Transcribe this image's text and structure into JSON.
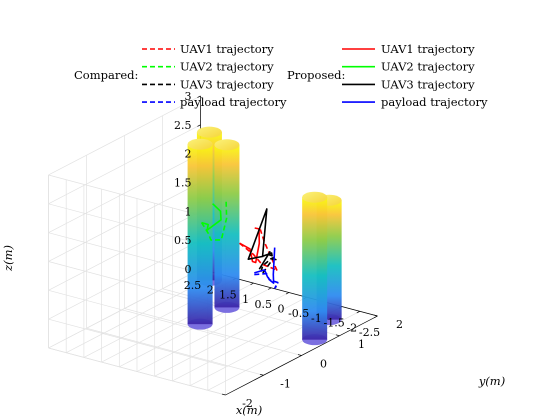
{
  "chart_data": {
    "type": "line3d",
    "xlabel": "x(m)",
    "ylabel": "y(m)",
    "zlabel": "z(m)",
    "xlim": [
      -2.5,
      2.5
    ],
    "ylim": [
      -2,
      2
    ],
    "zlim": [
      0,
      3
    ],
    "x_ticks": [
      "2.5",
      "2",
      "1.5",
      "1",
      "0.5",
      "0",
      "-0.5",
      "-1",
      "-1.5",
      "-2",
      "-2.5"
    ],
    "y_ticks": [
      "-2",
      "-1",
      "0",
      "1",
      "2"
    ],
    "z_ticks": [
      "0",
      "0.5",
      "1",
      "1.5",
      "2",
      "2.5",
      "3"
    ],
    "grid": true,
    "legend": {
      "compared_label": "Compared:",
      "proposed_label": "Proposed:",
      "compared": [
        {
          "name": "UAV1 trajectory",
          "color": "#ff0000",
          "style": "dashed"
        },
        {
          "name": "UAV2 trajectory",
          "color": "#00ff00",
          "style": "dashed"
        },
        {
          "name": "UAV3 trajectory",
          "color": "#000000",
          "style": "dashed"
        },
        {
          "name": "payload trajectory",
          "color": "#0000ff",
          "style": "dashed"
        }
      ],
      "proposed": [
        {
          "name": "UAV1 trajectory",
          "color": "#ff0000",
          "style": "solid"
        },
        {
          "name": "UAV2 trajectory",
          "color": "#00ff00",
          "style": "solid"
        },
        {
          "name": "UAV3 trajectory",
          "color": "#000000",
          "style": "solid"
        },
        {
          "name": "payload trajectory",
          "color": "#0000ff",
          "style": "solid"
        }
      ]
    },
    "obstacles": [
      {
        "x": 1.55,
        "y": 1.35,
        "z_top": 2.75
      },
      {
        "x": 0.15,
        "y": -0.2,
        "z_top": 3.3
      },
      {
        "x": 0.25,
        "y": 0.6,
        "z_top": 3.0
      },
      {
        "x": -2.1,
        "y": 1.1,
        "z_top": 2.25
      },
      {
        "x": -2.55,
        "y": 0.3,
        "z_top": 2.65
      }
    ],
    "series": [
      {
        "name": "UAV1 trajectory",
        "method": "proposed",
        "color": "#ff0000",
        "points": [
          [
            0.0,
            0.7,
            1.3
          ],
          [
            -0.4,
            0.6,
            1.3
          ],
          [
            -0.9,
            0.2,
            1.3
          ],
          [
            -1.1,
            0.1,
            1.35
          ],
          [
            -1.2,
            0.1,
            1.7
          ],
          [
            -1.3,
            0.0,
            2.0
          ],
          [
            -1.5,
            -0.3,
            2.15
          ]
        ]
      },
      {
        "name": "UAV1 trajectory",
        "method": "compared",
        "color": "#ff0000",
        "points": [
          [
            0.0,
            0.7,
            1.3
          ],
          [
            -0.5,
            0.6,
            1.22
          ],
          [
            -1.0,
            0.35,
            1.22
          ],
          [
            -1.4,
            0.3,
            1.22
          ],
          [
            -1.6,
            0.2,
            1.25
          ],
          [
            -1.45,
            0.0,
            1.8
          ],
          [
            -1.55,
            -0.2,
            2.1
          ]
        ]
      },
      {
        "name": "UAV2 trajectory",
        "method": "proposed",
        "color": "#00ff00",
        "points": [
          [
            0.0,
            -0.3,
            2.0
          ],
          [
            -0.4,
            -0.5,
            2.1
          ],
          [
            -0.8,
            -0.9,
            2.2
          ],
          [
            -1.0,
            -1.1,
            2.3
          ],
          [
            -1.3,
            -1.0,
            2.5
          ],
          [
            -1.5,
            -1.2,
            2.75
          ],
          [
            -1.6,
            -1.5,
            3.0
          ]
        ]
      },
      {
        "name": "UAV2 trajectory",
        "method": "compared",
        "color": "#00ff00",
        "points": [
          [
            0.0,
            -0.3,
            2.0
          ],
          [
            -0.4,
            -0.5,
            1.95
          ],
          [
            -0.8,
            -0.8,
            2.0
          ],
          [
            -1.2,
            -0.9,
            2.1
          ],
          [
            -1.35,
            -0.9,
            2.5
          ],
          [
            -1.55,
            -1.1,
            2.9
          ]
        ]
      },
      {
        "name": "UAV3 trajectory",
        "method": "proposed",
        "color": "#000000",
        "points": [
          [
            -1.2,
            0.1,
            1.25
          ],
          [
            -1.5,
            0.1,
            1.6
          ],
          [
            -1.8,
            -0.2,
            1.7
          ],
          [
            -2.1,
            -0.4,
            1.8
          ],
          [
            -2.3,
            -0.6,
            1.95
          ],
          [
            -2.45,
            -1.0,
            2.05
          ],
          [
            -2.5,
            -1.4,
            2.15
          ],
          [
            -2.7,
            -1.1,
            2.95
          ],
          [
            -2.9,
            -1.4,
            2.25
          ]
        ]
      },
      {
        "name": "UAV3 trajectory",
        "method": "compared",
        "color": "#000000",
        "points": [
          [
            -1.3,
            0.1,
            1.2
          ],
          [
            -1.7,
            0.0,
            1.55
          ],
          [
            -2.1,
            -0.3,
            1.7
          ],
          [
            -2.4,
            -0.6,
            1.9
          ],
          [
            -2.6,
            -0.9,
            2.0
          ],
          [
            -2.8,
            -1.3,
            2.05
          ],
          [
            -2.95,
            -1.5,
            2.0
          ]
        ]
      },
      {
        "name": "payload trajectory",
        "method": "proposed",
        "color": "#0000ff",
        "points": [
          [
            -0.2,
            0.9,
            0.75
          ],
          [
            -0.6,
            0.8,
            0.9
          ],
          [
            -1.0,
            0.5,
            0.95
          ],
          [
            -1.3,
            0.3,
            1.0
          ],
          [
            -1.55,
            0.15,
            1.05
          ],
          [
            -1.65,
            0.05,
            1.25
          ],
          [
            -1.85,
            -0.1,
            1.8
          ]
        ]
      },
      {
        "name": "payload trajectory",
        "method": "compared",
        "color": "#0000ff",
        "points": [
          [
            -0.2,
            0.9,
            0.72
          ],
          [
            -0.6,
            0.85,
            0.82
          ],
          [
            -1.0,
            0.55,
            0.88
          ],
          [
            -1.4,
            0.4,
            0.95
          ],
          [
            -1.6,
            0.2,
            1.0
          ],
          [
            -1.75,
            0.0,
            1.05
          ],
          [
            -2.0,
            -0.2,
            1.2
          ]
        ]
      }
    ]
  }
}
